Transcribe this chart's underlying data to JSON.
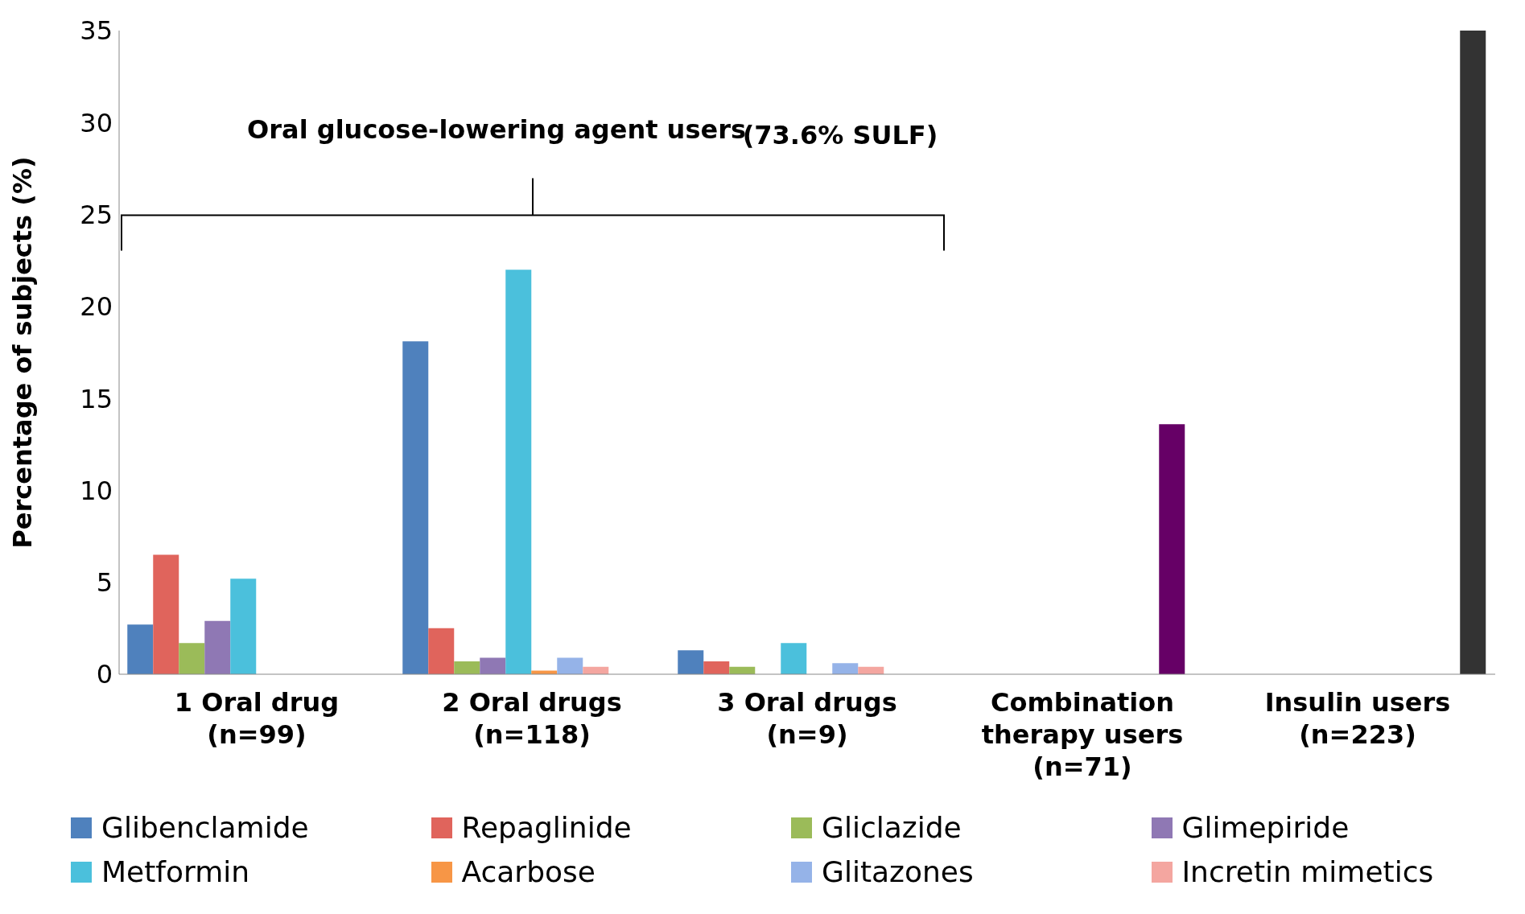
{
  "chart_data": {
    "type": "bar",
    "ylabel": "Percentage of subjects (%)",
    "categories": [
      "1 Oral drug\n(n=99)",
      "2 Oral drugs\n(n=118)",
      "3 Oral drugs\n(n=9)",
      "Combination\ntherapy users\n(n=71)",
      "Insulin users\n(n=223)"
    ],
    "series": [
      {
        "name": "Glibenclamide",
        "color": "#4f81bd",
        "values": [
          2.7,
          18.1,
          1.3,
          null,
          null
        ]
      },
      {
        "name": "Repaglinide",
        "color": "#e0645c",
        "values": [
          6.5,
          2.5,
          0.7,
          null,
          null
        ]
      },
      {
        "name": "Gliclazide",
        "color": "#9bbb59",
        "values": [
          1.7,
          0.7,
          0.4,
          null,
          null
        ]
      },
      {
        "name": "Glimepiride",
        "color": "#8f78b4",
        "values": [
          2.9,
          0.9,
          0,
          null,
          null
        ]
      },
      {
        "name": "Metformin",
        "color": "#4bc0dc",
        "values": [
          5.2,
          22,
          1.7,
          null,
          null
        ]
      },
      {
        "name": "Acarbose",
        "color": "#f79646",
        "values": [
          0,
          0.2,
          0,
          null,
          null
        ]
      },
      {
        "name": "Glitazones",
        "color": "#95b3e8",
        "values": [
          0,
          0.9,
          0.6,
          null,
          null
        ]
      },
      {
        "name": "Incretin mimetics",
        "color": "#f4a6a0",
        "values": [
          0,
          0.4,
          0.4,
          null,
          null
        ]
      },
      {
        "color": "#660066",
        "values": [
          null,
          null,
          null,
          13.6,
          null
        ]
      },
      {
        "color": "#333333",
        "values": [
          null,
          null,
          null,
          null,
          35
        ]
      }
    ],
    "ylim": [
      0,
      35
    ],
    "yticks": [
      0,
      5,
      10,
      15,
      20,
      25,
      30,
      35
    ],
    "legend": "bottom",
    "annotations": [
      "Oral glucose-lowering agent users",
      "(73.6% SULF)"
    ]
  }
}
